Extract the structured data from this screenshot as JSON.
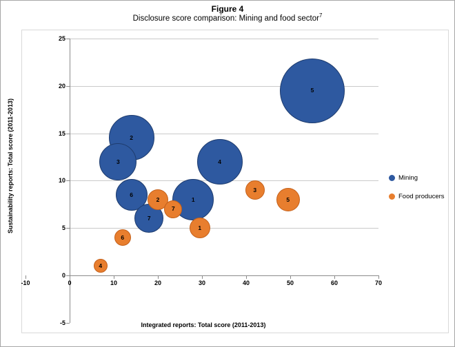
{
  "figure": {
    "title": "Figure 4",
    "subtitle": "Disclosure score comparison: Mining and food sector",
    "subtitle_superscript": "7"
  },
  "chart_data": {
    "type": "scatter",
    "variant": "bubble",
    "title": "Disclosure score comparison: Mining and food sector",
    "xlabel": "Integrated reports: Total score (2011-2013)",
    "ylabel": "Sustainability reports: Total score (2011-2013)",
    "xlim": [
      -10,
      70
    ],
    "ylim": [
      -5,
      25
    ],
    "x_ticks": [
      -10,
      0,
      10,
      20,
      30,
      40,
      50,
      60,
      70
    ],
    "y_ticks": [
      -5,
      0,
      5,
      10,
      15,
      20,
      25
    ],
    "grid": "horizontal",
    "legend_position": "right-middle",
    "point_labels": "company number shown inside each bubble",
    "series": [
      {
        "name": "Mining",
        "color": "#2e59a0",
        "border_color": "#1e3c6e",
        "points": [
          {
            "label": "1",
            "x": 28,
            "y": 8,
            "r": 30
          },
          {
            "label": "2",
            "x": 14,
            "y": 14.5,
            "r": 33
          },
          {
            "label": "3",
            "x": 11,
            "y": 12,
            "r": 27
          },
          {
            "label": "4",
            "x": 34,
            "y": 12,
            "r": 33
          },
          {
            "label": "5",
            "x": 55,
            "y": 19.5,
            "r": 47
          },
          {
            "label": "6",
            "x": 14,
            "y": 8.5,
            "r": 23
          },
          {
            "label": "7",
            "x": 18,
            "y": 6,
            "r": 21
          }
        ]
      },
      {
        "name": "Food producers",
        "color": "#e87e2e",
        "border_color": "#c4601a",
        "points": [
          {
            "label": "2",
            "x": 20,
            "y": 8,
            "r": 15
          },
          {
            "label": "7",
            "x": 23.5,
            "y": 7,
            "r": 13
          },
          {
            "label": "1",
            "x": 29.5,
            "y": 5,
            "r": 15
          },
          {
            "label": "3",
            "x": 42,
            "y": 9,
            "r": 14
          },
          {
            "label": "5",
            "x": 49.5,
            "y": 8,
            "r": 17
          },
          {
            "label": "6",
            "x": 12,
            "y": 4,
            "r": 12
          },
          {
            "label": "4",
            "x": 7,
            "y": 1,
            "r": 10
          }
        ]
      }
    ]
  }
}
